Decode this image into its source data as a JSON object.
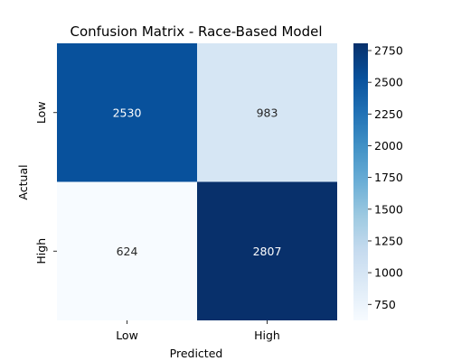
{
  "chart_data": {
    "type": "heatmap",
    "title": "Confusion Matrix - Race-Based Model",
    "xlabel": "Predicted",
    "ylabel": "Actual",
    "x_categories": [
      "Low",
      "High"
    ],
    "y_categories": [
      "Low",
      "High"
    ],
    "values": [
      [
        2530,
        983
      ],
      [
        624,
        2807
      ]
    ],
    "colormap": "Blues",
    "colorbar": {
      "min": 624,
      "max": 2807,
      "ticks": [
        750,
        1000,
        1250,
        1500,
        1750,
        2000,
        2250,
        2500,
        2750
      ]
    },
    "cell_label_colors": {
      "on_dark": "#ffffff",
      "on_light": "#262626"
    }
  }
}
